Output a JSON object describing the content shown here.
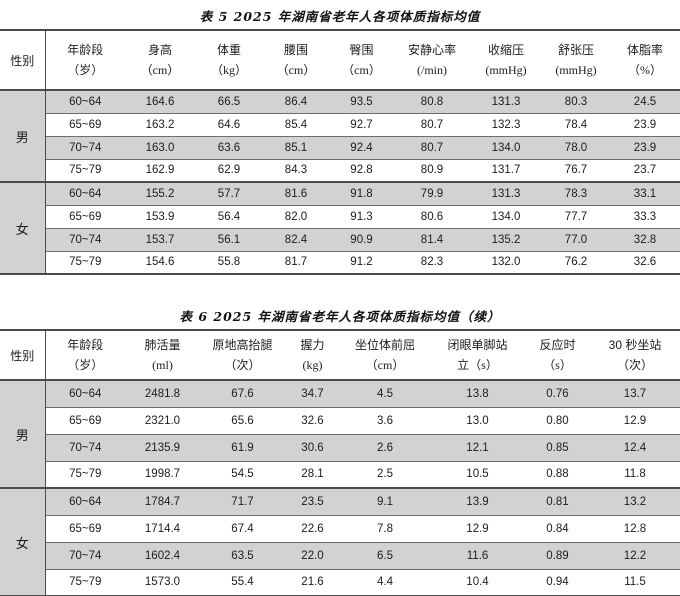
{
  "colors": {
    "row_shade": "#d2d2d2",
    "border_outer": "#4b4b4b",
    "border_row": "#6e6e6e"
  },
  "table5": {
    "title": "表 5 2025 年湖南省老年人各项体质指标均值",
    "gender_header": "性别",
    "columns": [
      {
        "name": "年龄段",
        "unit": "（岁）"
      },
      {
        "name": "身高",
        "unit": "（cm）"
      },
      {
        "name": "体重",
        "unit": "（kg）"
      },
      {
        "name": "腰围",
        "unit": "（cm）"
      },
      {
        "name": "臀围",
        "unit": "（cm）"
      },
      {
        "name": "安静心率",
        "unit": "(/min)"
      },
      {
        "name": "收缩压",
        "unit": "(mmHg)"
      },
      {
        "name": "舒张压",
        "unit": "(mmHg)"
      },
      {
        "name": "体脂率",
        "unit": "（%）"
      }
    ],
    "groups": [
      {
        "gender": "男",
        "rows": [
          [
            "60~64",
            "164.6",
            "66.5",
            "86.4",
            "93.5",
            "80.8",
            "131.3",
            "80.3",
            "24.5"
          ],
          [
            "65~69",
            "163.2",
            "64.6",
            "85.4",
            "92.7",
            "80.7",
            "132.3",
            "78.4",
            "23.9"
          ],
          [
            "70~74",
            "163.0",
            "63.6",
            "85.1",
            "92.4",
            "80.7",
            "134.0",
            "78.0",
            "23.9"
          ],
          [
            "75~79",
            "162.9",
            "62.9",
            "84.3",
            "92.8",
            "80.9",
            "131.7",
            "76.7",
            "23.7"
          ]
        ]
      },
      {
        "gender": "女",
        "rows": [
          [
            "60~64",
            "155.2",
            "57.7",
            "81.6",
            "91.8",
            "79.9",
            "131.3",
            "78.3",
            "33.1"
          ],
          [
            "65~69",
            "153.9",
            "56.4",
            "82.0",
            "91.3",
            "80.6",
            "134.0",
            "77.7",
            "33.3"
          ],
          [
            "70~74",
            "153.7",
            "56.1",
            "82.4",
            "90.9",
            "81.4",
            "135.2",
            "77.0",
            "32.8"
          ],
          [
            "75~79",
            "154.6",
            "55.8",
            "81.7",
            "91.2",
            "82.3",
            "132.0",
            "76.2",
            "32.6"
          ]
        ]
      }
    ]
  },
  "table6": {
    "title": "表 6 2025 年湖南省老年人各项体质指标均值（续）",
    "gender_header": "性别",
    "columns": [
      {
        "name": "年龄段",
        "unit": "（岁）"
      },
      {
        "name": "肺活量",
        "unit": "(ml)"
      },
      {
        "name": "原地高抬腿",
        "unit": "（次）"
      },
      {
        "name": "握力",
        "unit": "(kg)"
      },
      {
        "name": "坐位体前屈",
        "unit": "（cm）"
      },
      {
        "name": "闭眼单脚站",
        "unit": "立（s）"
      },
      {
        "name": "反应时",
        "unit": "（s）"
      },
      {
        "name": "30 秒坐站",
        "unit": "（次）"
      }
    ],
    "groups": [
      {
        "gender": "男",
        "rows": [
          [
            "60~64",
            "2481.8",
            "67.6",
            "34.7",
            "4.5",
            "13.8",
            "0.76",
            "13.7"
          ],
          [
            "65~69",
            "2321.0",
            "65.6",
            "32.6",
            "3.6",
            "13.0",
            "0.80",
            "12.9"
          ],
          [
            "70~74",
            "2135.9",
            "61.9",
            "30.6",
            "2.6",
            "12.1",
            "0.85",
            "12.4"
          ],
          [
            "75~79",
            "1998.7",
            "54.5",
            "28.1",
            "2.5",
            "10.5",
            "0.88",
            "11.8"
          ]
        ]
      },
      {
        "gender": "女",
        "rows": [
          [
            "60~64",
            "1784.7",
            "71.7",
            "23.5",
            "9.1",
            "13.9",
            "0.81",
            "13.2"
          ],
          [
            "65~69",
            "1714.4",
            "67.4",
            "22.6",
            "7.8",
            "12.9",
            "0.84",
            "12.8"
          ],
          [
            "70~74",
            "1602.4",
            "63.5",
            "22.0",
            "6.5",
            "11.6",
            "0.89",
            "12.2"
          ],
          [
            "75~79",
            "1573.0",
            "55.4",
            "21.6",
            "4.4",
            "10.4",
            "0.94",
            "11.5"
          ]
        ]
      }
    ]
  }
}
